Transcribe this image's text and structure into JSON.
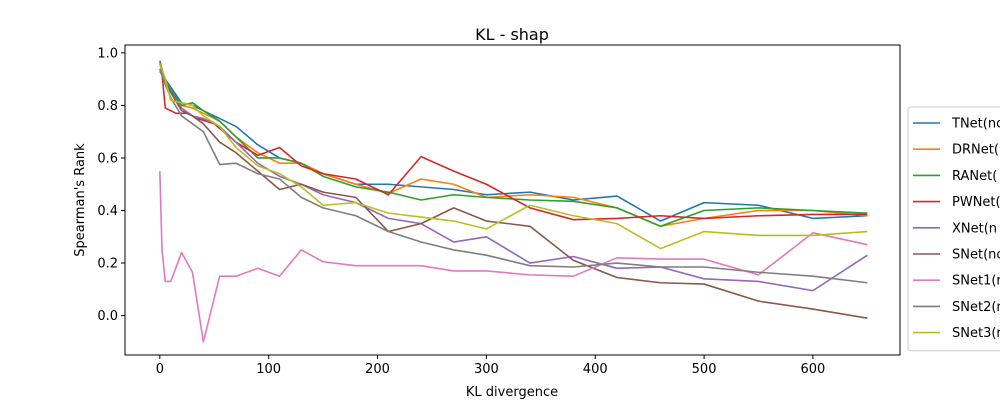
{
  "chart_data": {
    "type": "line",
    "title": "KL - shap",
    "xlabel": "KL divergence",
    "ylabel": "Spearman's Rank",
    "xlim": [
      -32,
      680
    ],
    "ylim": [
      -0.15,
      1.03
    ],
    "xticks": [
      0,
      100,
      200,
      300,
      400,
      500,
      600
    ],
    "yticks": [
      0.0,
      0.2,
      0.4,
      0.6,
      0.8,
      1.0
    ],
    "ytick_labels": [
      "0.0",
      "0.2",
      "0.4",
      "0.6",
      "0.8",
      "1.0"
    ],
    "grid": false,
    "legend_position": "right-outside",
    "series": [
      {
        "name": "TNet(no",
        "color": "#1f77b4",
        "x": [
          0,
          5,
          10,
          20,
          30,
          40,
          55,
          70,
          90,
          110,
          130,
          150,
          180,
          210,
          240,
          270,
          300,
          340,
          380,
          420,
          460,
          500,
          550,
          600,
          650
        ],
        "y": [
          0.93,
          0.9,
          0.87,
          0.81,
          0.8,
          0.78,
          0.75,
          0.72,
          0.65,
          0.6,
          0.58,
          0.54,
          0.5,
          0.5,
          0.49,
          0.48,
          0.46,
          0.47,
          0.44,
          0.455,
          0.36,
          0.43,
          0.42,
          0.37,
          0.38
        ]
      },
      {
        "name": "DRNet(",
        "color": "#ff7f0e",
        "x": [
          0,
          5,
          10,
          20,
          30,
          40,
          55,
          70,
          90,
          110,
          130,
          150,
          180,
          210,
          240,
          270,
          300,
          340,
          380,
          420,
          460,
          500,
          550,
          600,
          650
        ],
        "y": [
          0.96,
          0.88,
          0.85,
          0.8,
          0.79,
          0.77,
          0.74,
          0.68,
          0.62,
          0.58,
          0.58,
          0.54,
          0.5,
          0.465,
          0.52,
          0.5,
          0.45,
          0.46,
          0.45,
          0.41,
          0.34,
          0.37,
          0.4,
          0.4,
          0.38
        ]
      },
      {
        "name": "RANet(",
        "color": "#2ca02c",
        "x": [
          0,
          5,
          10,
          20,
          30,
          40,
          55,
          70,
          90,
          110,
          130,
          150,
          180,
          210,
          240,
          270,
          300,
          340,
          380,
          420,
          460,
          500,
          550,
          600,
          650
        ],
        "y": [
          0.96,
          0.9,
          0.86,
          0.8,
          0.81,
          0.78,
          0.74,
          0.68,
          0.6,
          0.6,
          0.58,
          0.53,
          0.49,
          0.47,
          0.44,
          0.46,
          0.45,
          0.44,
          0.435,
          0.41,
          0.34,
          0.4,
          0.41,
          0.4,
          0.39
        ]
      },
      {
        "name": "PWNet(",
        "color": "#d62728",
        "x": [
          0,
          2,
          5,
          15,
          25,
          35,
          50,
          70,
          90,
          110,
          130,
          150,
          180,
          210,
          240,
          270,
          300,
          340,
          380,
          420,
          460,
          500,
          550,
          600,
          650
        ],
        "y": [
          0.94,
          0.92,
          0.79,
          0.77,
          0.77,
          0.75,
          0.73,
          0.66,
          0.61,
          0.64,
          0.57,
          0.54,
          0.52,
          0.46,
          0.605,
          0.55,
          0.5,
          0.41,
          0.365,
          0.37,
          0.38,
          0.37,
          0.38,
          0.385,
          0.385
        ]
      },
      {
        "name": "XNet(n",
        "color": "#9467bd",
        "x": [
          0,
          5,
          10,
          20,
          30,
          40,
          55,
          70,
          90,
          110,
          130,
          150,
          180,
          210,
          240,
          270,
          300,
          340,
          380,
          420,
          460,
          500,
          550,
          600,
          650
        ],
        "y": [
          0.93,
          0.89,
          0.85,
          0.79,
          0.76,
          0.75,
          0.72,
          0.66,
          0.58,
          0.53,
          0.5,
          0.46,
          0.43,
          0.37,
          0.35,
          0.28,
          0.3,
          0.2,
          0.225,
          0.18,
          0.185,
          0.14,
          0.13,
          0.095,
          0.23
        ]
      },
      {
        "name": "SNet(no",
        "color": "#8c564b",
        "x": [
          0,
          5,
          10,
          20,
          30,
          40,
          55,
          70,
          90,
          110,
          130,
          150,
          180,
          210,
          240,
          270,
          300,
          340,
          380,
          420,
          460,
          500,
          550,
          600,
          650
        ],
        "y": [
          0.97,
          0.89,
          0.85,
          0.78,
          0.76,
          0.73,
          0.66,
          0.62,
          0.55,
          0.48,
          0.5,
          0.47,
          0.45,
          0.32,
          0.35,
          0.41,
          0.36,
          0.34,
          0.21,
          0.145,
          0.125,
          0.12,
          0.055,
          0.025,
          -0.01
        ]
      },
      {
        "name": "SNet1(r",
        "color": "#e377c2",
        "x": [
          0,
          2,
          5,
          10,
          20,
          30,
          40,
          55,
          70,
          90,
          110,
          130,
          150,
          180,
          210,
          240,
          270,
          300,
          340,
          380,
          420,
          460,
          500,
          550,
          600,
          650
        ],
        "y": [
          0.55,
          0.25,
          0.13,
          0.13,
          0.24,
          0.165,
          -0.1,
          0.15,
          0.15,
          0.18,
          0.15,
          0.25,
          0.205,
          0.19,
          0.19,
          0.19,
          0.17,
          0.17,
          0.155,
          0.15,
          0.22,
          0.215,
          0.215,
          0.155,
          0.315,
          0.27
        ]
      },
      {
        "name": "SNet2(r",
        "color": "#7f7f7f",
        "x": [
          0,
          5,
          10,
          20,
          30,
          40,
          55,
          70,
          90,
          110,
          130,
          150,
          180,
          210,
          240,
          270,
          300,
          340,
          380,
          420,
          460,
          500,
          550,
          600,
          650
        ],
        "y": [
          0.94,
          0.88,
          0.83,
          0.76,
          0.73,
          0.7,
          0.575,
          0.58,
          0.54,
          0.52,
          0.45,
          0.41,
          0.38,
          0.32,
          0.28,
          0.25,
          0.23,
          0.19,
          0.185,
          0.2,
          0.185,
          0.185,
          0.165,
          0.15,
          0.125
        ]
      },
      {
        "name": "SNet3(r",
        "color": "#bcbd22",
        "x": [
          0,
          5,
          10,
          20,
          30,
          40,
          55,
          70,
          90,
          110,
          130,
          150,
          180,
          210,
          240,
          270,
          300,
          340,
          380,
          420,
          460,
          500,
          550,
          600,
          650
        ],
        "y": [
          0.96,
          0.9,
          0.82,
          0.81,
          0.8,
          0.76,
          0.72,
          0.64,
          0.57,
          0.54,
          0.49,
          0.42,
          0.43,
          0.39,
          0.375,
          0.36,
          0.33,
          0.42,
          0.38,
          0.35,
          0.255,
          0.32,
          0.305,
          0.305,
          0.32
        ]
      }
    ]
  }
}
